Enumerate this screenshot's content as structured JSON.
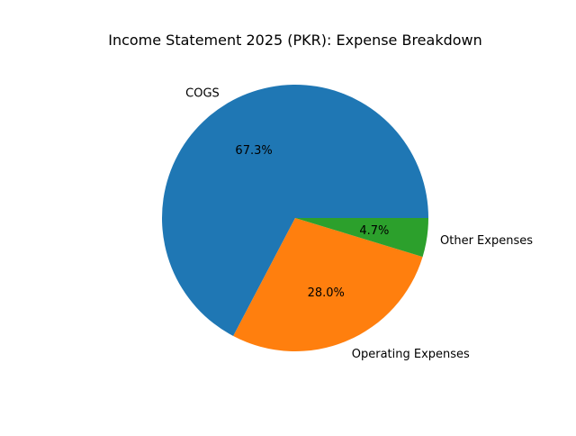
{
  "chart_data": {
    "type": "pie",
    "title": "Income Statement 2025 (PKR): Expense Breakdown",
    "start_angle_deg": 0,
    "direction": "counterclockwise",
    "slices": [
      {
        "label": "COGS",
        "pct_label": "67.3%",
        "value": 67.3,
        "color": "#1f77b4"
      },
      {
        "label": "Operating Expenses",
        "pct_label": "28.0%",
        "value": 28.0,
        "color": "#ff7f0e"
      },
      {
        "label": "Other Expenses",
        "pct_label": "4.7%",
        "value": 4.7,
        "color": "#2ca02c"
      }
    ]
  }
}
